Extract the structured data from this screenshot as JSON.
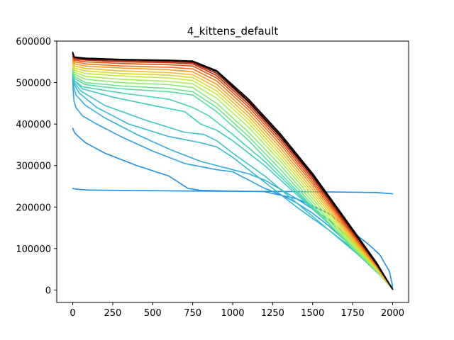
{
  "chart_data": {
    "type": "line",
    "title": "4_kittens_default",
    "xlabel": "",
    "ylabel": "",
    "xlim": [
      -100,
      2100
    ],
    "ylim": [
      -30000,
      600000
    ],
    "xticks": [
      0,
      250,
      500,
      750,
      1000,
      1250,
      1500,
      1750,
      2000
    ],
    "yticks": [
      0,
      100000,
      200000,
      300000,
      400000,
      500000,
      600000
    ],
    "grid": false,
    "legend": "none",
    "colormap": "turbo (light blue for early curves, through green, yellow, orange, red, to black for the latest)",
    "series": [
      {
        "color": "#1f8fe8",
        "x": [
          0,
          20,
          100,
          300,
          600,
          1000,
          1300,
          1600,
          1900,
          2000
        ],
        "y": [
          245000,
          243000,
          241000,
          240000,
          239000,
          238000,
          237500,
          236500,
          235000,
          232000
        ]
      },
      {
        "color": "#1f8fe8",
        "x": [
          0,
          10,
          30,
          80,
          200,
          400,
          600,
          720,
          800,
          1000,
          1200,
          1400,
          1600,
          1750,
          1850,
          1920,
          1980,
          2000
        ],
        "y": [
          390000,
          380000,
          372000,
          355000,
          330000,
          300000,
          275000,
          245000,
          240000,
          238500,
          237000,
          220000,
          185000,
          140000,
          110000,
          85000,
          45000,
          8000
        ]
      },
      {
        "color": "#2aa0e6",
        "x": [
          0,
          3,
          8,
          20,
          60,
          150,
          300,
          500,
          700,
          900,
          1000,
          1100,
          1200,
          1300,
          1400,
          1500,
          1600,
          1700,
          1800,
          1900,
          1970,
          2000
        ],
        "y": [
          510000,
          480000,
          455000,
          440000,
          420000,
          400000,
          370000,
          335000,
          305000,
          290000,
          285000,
          265000,
          245000,
          230000,
          210000,
          185000,
          155000,
          120000,
          85000,
          50000,
          20000,
          5000
        ]
      },
      {
        "color": "#30aedd",
        "x": [
          0,
          5,
          20,
          80,
          200,
          400,
          600,
          800,
          1000,
          1100,
          1200,
          1400,
          1600,
          1800,
          1950,
          2000
        ],
        "y": [
          515000,
          490000,
          470000,
          445000,
          415000,
          375000,
          340000,
          310000,
          290000,
          280000,
          265000,
          220000,
          170000,
          100000,
          30000,
          2000
        ]
      },
      {
        "color": "#35b9d4",
        "x": [
          0,
          10,
          40,
          150,
          350,
          600,
          800,
          900,
          1000,
          1200,
          1400,
          1600,
          1800,
          1950,
          2000
        ],
        "y": [
          520000,
          495000,
          475000,
          440000,
          400000,
          370000,
          355000,
          345000,
          320000,
          260000,
          200000,
          145000,
          85000,
          30000,
          3000
        ]
      },
      {
        "color": "#3bc3c9",
        "x": [
          0,
          10,
          50,
          200,
          450,
          700,
          820,
          900,
          1000,
          1200,
          1400,
          1600,
          1800,
          1950,
          2000
        ],
        "y": [
          525000,
          500000,
          480000,
          445000,
          410000,
          380000,
          375000,
          360000,
          330000,
          275000,
          210000,
          145000,
          80000,
          25000,
          2000
        ]
      },
      {
        "color": "#3dccc0",
        "x": [
          0,
          10,
          60,
          250,
          500,
          700,
          800,
          900,
          1000,
          1200,
          1400,
          1600,
          1800,
          1950,
          2000
        ],
        "y": [
          528000,
          505000,
          485000,
          465000,
          445000,
          430000,
          400000,
          385000,
          360000,
          300000,
          230000,
          160000,
          85000,
          25000,
          2000
        ]
      },
      {
        "color": "#44d4b4",
        "x": [
          0,
          10,
          60,
          300,
          600,
          750,
          850,
          1000,
          1200,
          1400,
          1600,
          1800,
          1950,
          2000
        ],
        "y": [
          530000,
          505000,
          490000,
          475000,
          460000,
          440000,
          420000,
          375000,
          310000,
          235000,
          160000,
          85000,
          25000,
          2000
        ]
      },
      {
        "color": "#55dc9f",
        "x": [
          0,
          10,
          80,
          300,
          600,
          750,
          900,
          1100,
          1300,
          1500,
          1700,
          1900,
          2000
        ],
        "y": [
          532000,
          510000,
          495000,
          485000,
          478000,
          470000,
          430000,
          360000,
          280000,
          200000,
          120000,
          45000,
          2000
        ]
      },
      {
        "color": "#6ee487",
        "x": [
          0,
          10,
          80,
          300,
          600,
          750,
          900,
          1100,
          1300,
          1500,
          1700,
          1900,
          2000
        ],
        "y": [
          535000,
          515000,
          500000,
          492000,
          486000,
          478000,
          440000,
          370000,
          290000,
          205000,
          120000,
          45000,
          2000
        ]
      },
      {
        "color": "#8ceb6c",
        "x": [
          0,
          10,
          80,
          300,
          600,
          750,
          900,
          1100,
          1300,
          1500,
          1700,
          1900,
          2000
        ],
        "y": [
          538000,
          520000,
          508000,
          500000,
          495000,
          488000,
          450000,
          380000,
          300000,
          212000,
          125000,
          45000,
          2000
        ]
      },
      {
        "color": "#a8ee55",
        "x": [
          0,
          10,
          80,
          300,
          600,
          750,
          900,
          1100,
          1300,
          1500,
          1700,
          1900,
          2000
        ],
        "y": [
          540000,
          525000,
          515000,
          508000,
          503000,
          497000,
          462000,
          392000,
          310000,
          220000,
          130000,
          48000,
          2000
        ]
      },
      {
        "color": "#c5e83f",
        "x": [
          0,
          10,
          80,
          300,
          600,
          750,
          900,
          1100,
          1300,
          1500,
          1700,
          1900,
          2000
        ],
        "y": [
          545000,
          530000,
          522000,
          516000,
          511000,
          505000,
          472000,
          402000,
          318000,
          228000,
          135000,
          50000,
          2000
        ]
      },
      {
        "color": "#dfd435",
        "x": [
          0,
          10,
          80,
          300,
          600,
          750,
          900,
          1100,
          1300,
          1500,
          1700,
          1900,
          2000
        ],
        "y": [
          548000,
          535000,
          528000,
          522000,
          518000,
          512000,
          480000,
          410000,
          326000,
          235000,
          140000,
          52000,
          2000
        ]
      },
      {
        "color": "#f2bb2c",
        "x": [
          0,
          10,
          80,
          300,
          600,
          750,
          900,
          1100,
          1300,
          1500,
          1700,
          1900,
          2000
        ],
        "y": [
          552000,
          540000,
          534000,
          528000,
          524000,
          519000,
          488000,
          418000,
          334000,
          242000,
          145000,
          54000,
          2000
        ]
      },
      {
        "color": "#fb9b22",
        "x": [
          0,
          10,
          80,
          300,
          600,
          750,
          900,
          1100,
          1300,
          1500,
          1700,
          1900,
          2000
        ],
        "y": [
          556000,
          545000,
          540000,
          535000,
          531000,
          526000,
          496000,
          426000,
          342000,
          249000,
          150000,
          56000,
          2000
        ]
      },
      {
        "color": "#f57417",
        "x": [
          0,
          10,
          80,
          300,
          600,
          750,
          900,
          1100,
          1300,
          1500,
          1700,
          1900,
          2000
        ],
        "y": [
          560000,
          550000,
          545000,
          540000,
          537000,
          533000,
          504000,
          434000,
          350000,
          256000,
          155000,
          58000,
          2000
        ]
      },
      {
        "color": "#e2500f",
        "x": [
          0,
          10,
          80,
          300,
          600,
          750,
          900,
          1100,
          1300,
          1500,
          1700,
          1900,
          2000
        ],
        "y": [
          563000,
          554000,
          550000,
          546000,
          543000,
          540000,
          511000,
          441000,
          357000,
          262000,
          160000,
          60000,
          2000
        ]
      },
      {
        "color": "#c4310b",
        "x": [
          0,
          10,
          80,
          300,
          600,
          750,
          900,
          1100,
          1300,
          1500,
          1700,
          1900,
          2000
        ],
        "y": [
          566000,
          557000,
          554000,
          550000,
          548000,
          545000,
          517000,
          447000,
          363000,
          268000,
          164000,
          62000,
          2000
        ]
      },
      {
        "color": "#9b1a08",
        "x": [
          0,
          10,
          80,
          300,
          600,
          750,
          900,
          1100,
          1300,
          1500,
          1700,
          1900,
          2000
        ],
        "y": [
          568000,
          559000,
          556000,
          553000,
          551000,
          548000,
          522000,
          452000,
          368000,
          273000,
          168000,
          64000,
          2000
        ]
      },
      {
        "color": "#6e0e06",
        "x": [
          0,
          10,
          80,
          300,
          600,
          750,
          900,
          1100,
          1300,
          1500,
          1700,
          1900,
          2000
        ],
        "y": [
          570000,
          561000,
          558000,
          555000,
          553000,
          550000,
          526000,
          456000,
          372000,
          277000,
          171000,
          65000,
          2000
        ]
      },
      {
        "color": "#000000",
        "x": [
          0,
          10,
          80,
          300,
          600,
          750,
          900,
          1100,
          1300,
          1500,
          1700,
          1900,
          2000
        ],
        "y": [
          573000,
          562000,
          559000,
          556000,
          554000,
          552000,
          529000,
          460000,
          376000,
          281000,
          174000,
          66000,
          2000
        ]
      },
      {
        "color": "#000000",
        "x": [
          0,
          10,
          80,
          300,
          600,
          750,
          900,
          1100,
          1300,
          1500,
          1700,
          1900,
          2000
        ],
        "y": [
          571000,
          561000,
          557000,
          555000,
          553000,
          551000,
          527000,
          454000,
          370000,
          276000,
          170000,
          62000,
          2000
        ]
      }
    ]
  }
}
